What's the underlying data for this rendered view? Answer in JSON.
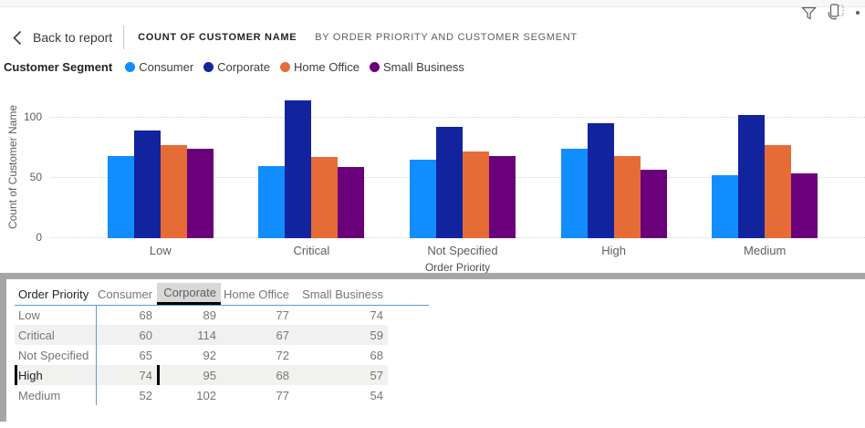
{
  "topbar": {
    "back_label": "Back to report",
    "title": "COUNT OF CUSTOMER NAME",
    "subtitle": "BY ORDER PRIORITY AND CUSTOMER SEGMENT",
    "icons": [
      "filter-funnel-icon",
      "switch-layout-icon",
      "more-options-icon"
    ]
  },
  "legend": {
    "title": "Customer Segment",
    "items": [
      {
        "label": "Consumer",
        "color": "#118DFF"
      },
      {
        "label": "Corporate",
        "color": "#12239E"
      },
      {
        "label": "Home Office",
        "color": "#E66C37"
      },
      {
        "label": "Small Business",
        "color": "#6B007B"
      }
    ]
  },
  "chart_data": {
    "type": "bar",
    "grouped": true,
    "title": "Count of Customer Name by Order Priority and Customer Segment",
    "categories": [
      "Low",
      "Critical",
      "Not Specified",
      "High",
      "Medium"
    ],
    "series": [
      {
        "name": "Consumer",
        "color": "#118DFF",
        "values": [
          68,
          60,
          65,
          74,
          52
        ]
      },
      {
        "name": "Corporate",
        "color": "#12239E",
        "values": [
          89,
          114,
          92,
          95,
          102
        ]
      },
      {
        "name": "Home Office",
        "color": "#E66C37",
        "values": [
          77,
          67,
          72,
          68,
          77
        ]
      },
      {
        "name": "Small Business",
        "color": "#6B007B",
        "values": [
          74,
          59,
          68,
          57,
          54
        ]
      }
    ],
    "xlabel": "Order Priority",
    "ylabel": "Count of Customer Name",
    "yticks": [
      0,
      50,
      100
    ],
    "ylim": [
      0,
      118
    ],
    "grid": "horizontal-dotted",
    "legend_position": "top"
  },
  "table": {
    "columns": [
      "Order Priority",
      "Consumer",
      "Corporate",
      "Home Office",
      "Small Business"
    ],
    "rows": [
      {
        "label": "Low",
        "values": [
          68,
          89,
          77,
          74
        ]
      },
      {
        "label": "Critical",
        "values": [
          60,
          114,
          67,
          59
        ]
      },
      {
        "label": "Not Specified",
        "values": [
          65,
          92,
          72,
          68
        ]
      },
      {
        "label": "High",
        "values": [
          74,
          95,
          68,
          57
        ]
      },
      {
        "label": "Medium",
        "values": [
          52,
          102,
          77,
          54
        ]
      }
    ],
    "selected_column": "Corporate",
    "selected_row": "High",
    "banded_rows": [
      "Critical",
      "High"
    ]
  }
}
